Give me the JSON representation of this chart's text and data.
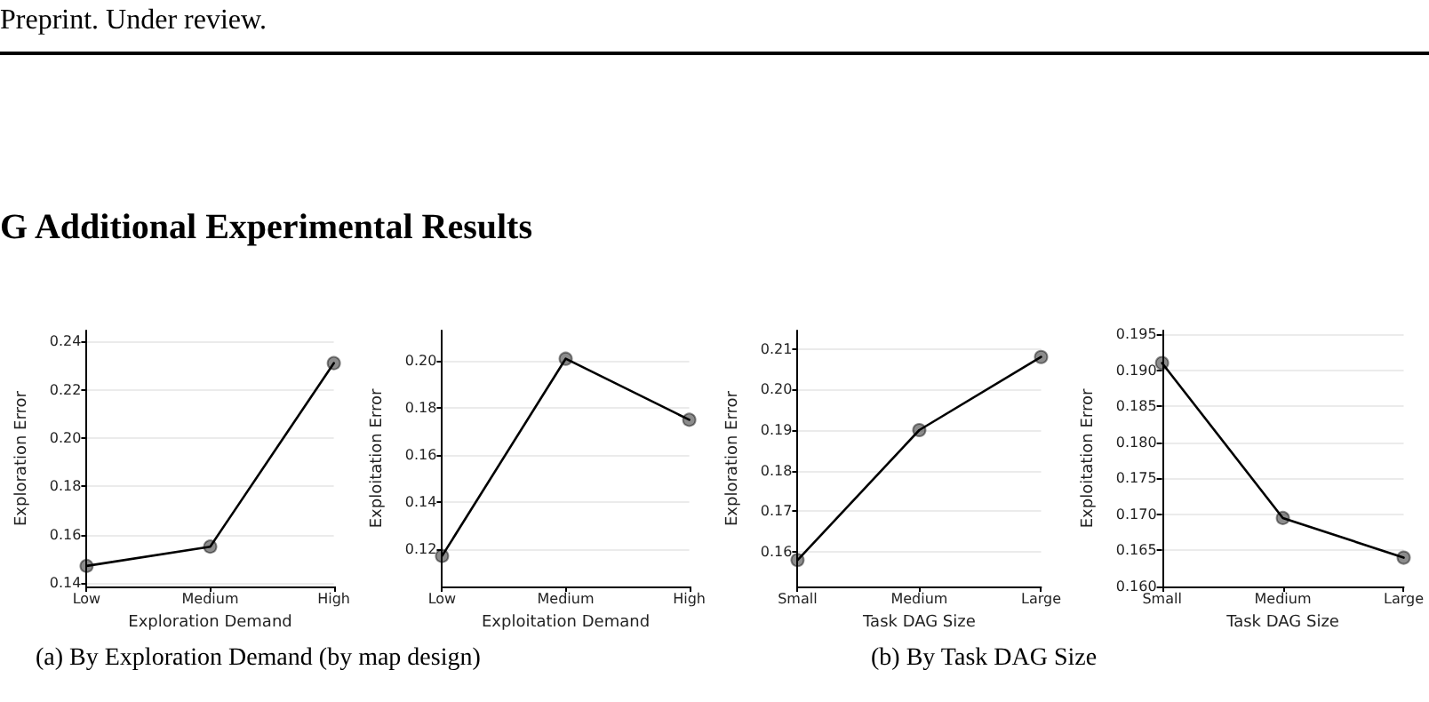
{
  "chart_data": [
    {
      "type": "line",
      "xlabel": "Exploration Demand",
      "ylabel": "Exploration Error",
      "categories": [
        "Low",
        "Medium",
        "High"
      ],
      "series": [
        {
          "color": "#000000",
          "values": [
            0.147,
            0.155,
            0.231
          ]
        }
      ],
      "ylim": [
        0.1385,
        0.2445
      ],
      "yticks": [
        0.14,
        0.16,
        0.18,
        {
          "value": 0.2,
          "label": "0.20"
        },
        0.22,
        0.24
      ],
      "grid": "y",
      "marker": "circle",
      "line_style": "solid",
      "annotations": [
        "Preprint. Under review.",
        "G Additional Experimental Results",
        "(a) By Exploration Demand (by map design)"
      ]
    },
    {
      "type": "line",
      "xlabel": "Exploitation Demand",
      "ylabel": "Exploitation Error",
      "categories": [
        "Low",
        "Medium",
        "High"
      ],
      "series": [
        {
          "color": "#000000",
          "values": [
            0.117,
            0.201,
            0.175
          ]
        }
      ],
      "ylim": [
        0.104,
        0.213
      ],
      "yticks": [
        0.12,
        0.14,
        0.16,
        0.18,
        {
          "value": 0.2,
          "label": "0.20"
        }
      ],
      "grid": "y",
      "marker": "circle",
      "line_style": "solid"
    },
    {
      "type": "line",
      "xlabel": "Task DAG Size",
      "ylabel": "Exploration Error",
      "categories": [
        "Small",
        "Medium",
        "Large"
      ],
      "series": [
        {
          "color": "#000000",
          "values": [
            0.158,
            0.19,
            0.208
          ]
        }
      ],
      "ylim": [
        0.1515,
        0.2145
      ],
      "yticks": [
        0.16,
        0.17,
        0.18,
        0.19,
        {
          "value": 0.2,
          "label": "0.20"
        },
        0.21
      ],
      "grid": "y",
      "marker": "circle",
      "line_style": "solid",
      "annotations": [
        "(b) By Task DAG Size"
      ]
    },
    {
      "type": "line",
      "xlabel": "Task DAG Size",
      "ylabel": "Exploitation Error",
      "categories": [
        "Small",
        "Medium",
        "Large"
      ],
      "series": [
        {
          "color": "#000000",
          "values": [
            0.191,
            0.1695,
            0.164
          ]
        }
      ],
      "ylim": [
        0.16,
        0.1955
      ],
      "yticks": [
        {
          "value": 0.16,
          "label": "0.160"
        },
        {
          "value": 0.165,
          "label": "0.165"
        },
        {
          "value": 0.17,
          "label": "0.170"
        },
        {
          "value": 0.175,
          "label": "0.175"
        },
        {
          "value": 0.18,
          "label": "0.180"
        },
        {
          "value": 0.185,
          "label": "0.185"
        },
        {
          "value": 0.19,
          "label": "0.190"
        },
        {
          "value": 0.195,
          "label": "0.195"
        }
      ],
      "grid": "y",
      "marker": "circle",
      "line_style": "solid"
    }
  ]
}
